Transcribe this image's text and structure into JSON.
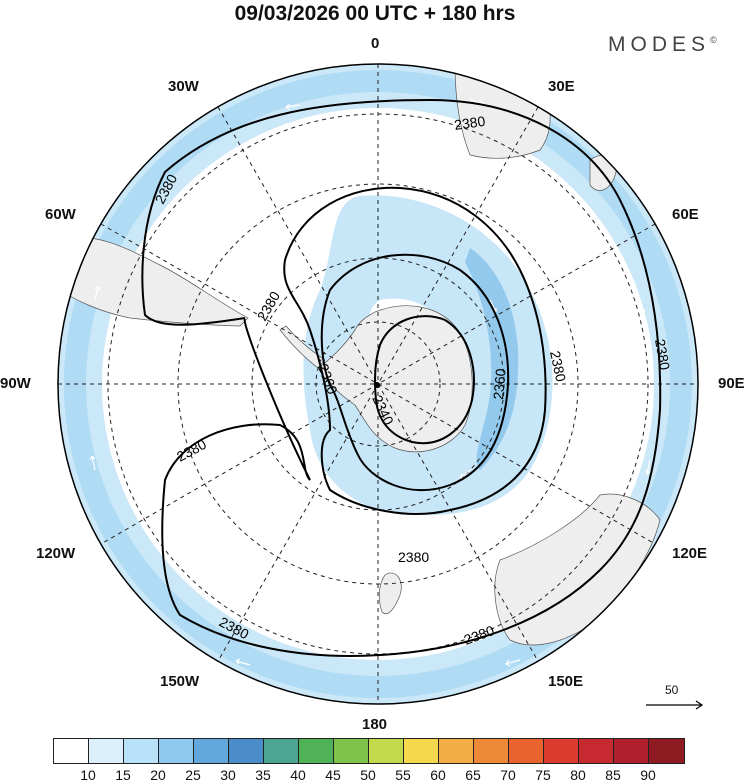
{
  "header": {
    "title": "09/03/2026  00 UTC  + 180 hrs",
    "brand": "MODES",
    "brand_mark": "©"
  },
  "longitude_labels": {
    "lon_0": "0",
    "lon_30e": "30E",
    "lon_60e": "60E",
    "lon_90e": "90E",
    "lon_120e": "120E",
    "lon_150e": "150E",
    "lon_180": "180",
    "lon_150w": "150W",
    "lon_120w": "120W",
    "lon_90w": "90W",
    "lon_60w": "60W",
    "lon_30w": "30W"
  },
  "contour_labels": [
    "2380",
    "2380",
    "2380",
    "2380",
    "2380",
    "2380",
    "2380",
    "2380",
    "2380",
    "2360",
    "2360",
    "2340"
  ],
  "wind_vector_reference": {
    "value": "50"
  },
  "colorbar": {
    "colors": [
      "#ffffff",
      "#dcf0fb",
      "#b8e2f8",
      "#8ec8ee",
      "#63a8dc",
      "#4a8dc8",
      "#4ca591",
      "#4fb257",
      "#7ec34a",
      "#c2da4b",
      "#f6d84c",
      "#f3ae45",
      "#ee8a37",
      "#e9632f",
      "#dc3b2f",
      "#c62930",
      "#b01f2d",
      "#8e1a22"
    ],
    "labels": [
      "10",
      "15",
      "20",
      "25",
      "30",
      "35",
      "40",
      "45",
      "50",
      "55",
      "60",
      "65",
      "70",
      "75",
      "80",
      "85",
      "90"
    ]
  }
}
